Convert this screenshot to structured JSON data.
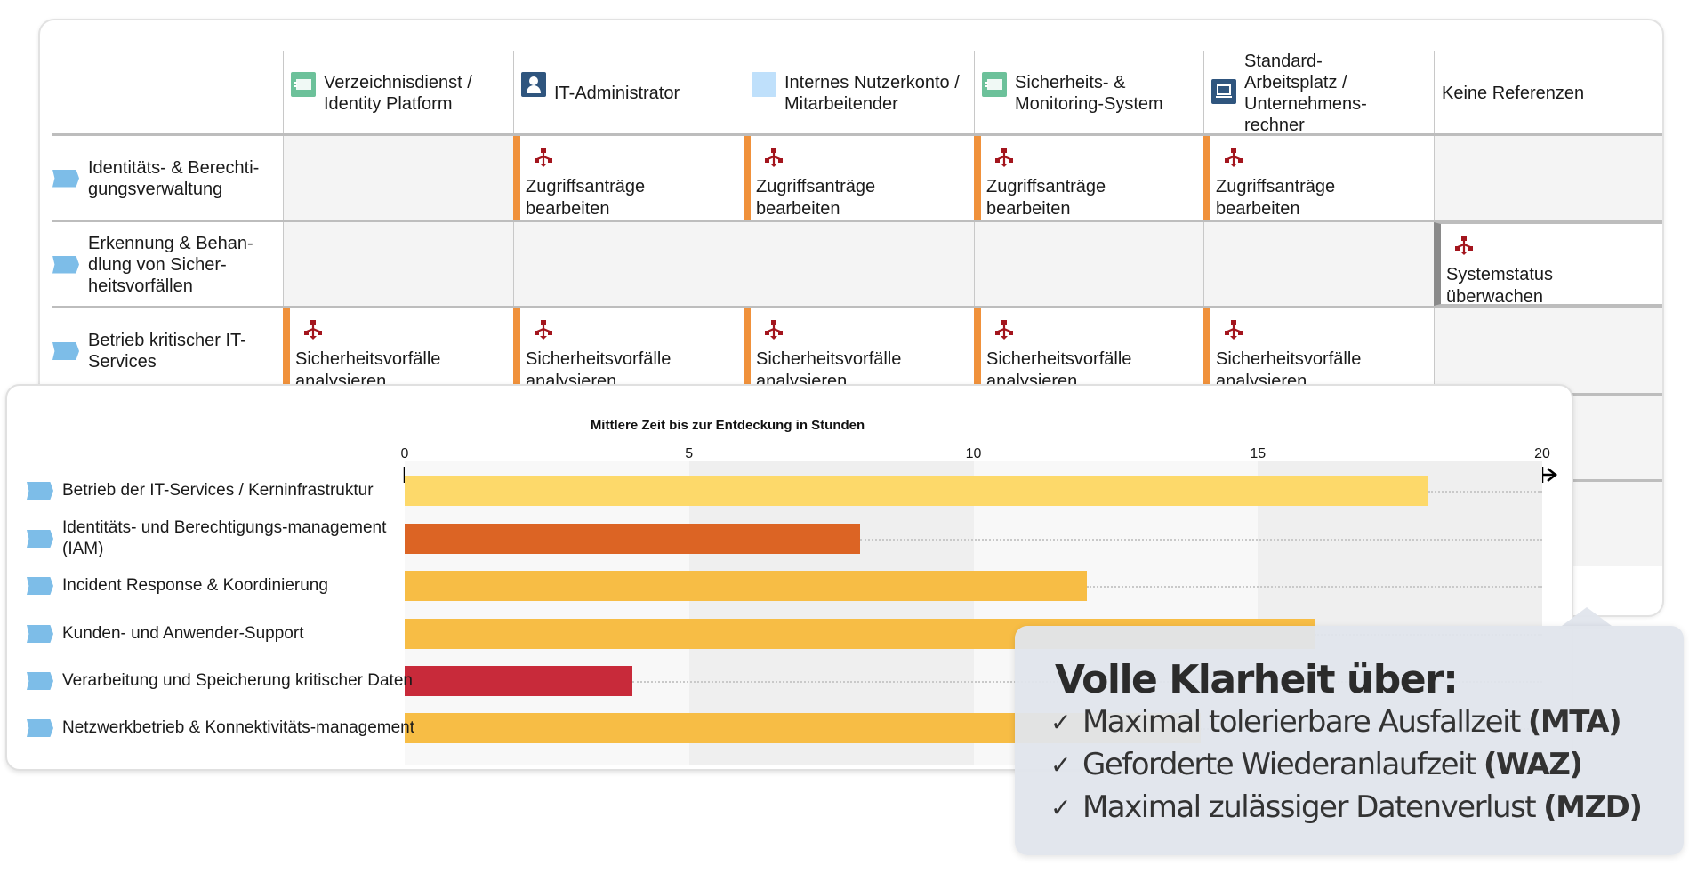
{
  "matrix": {
    "columns": [
      {
        "label": "Verzeichnisdienst / Identity Platform",
        "icon": "directory-service-icon",
        "color": "#6cc19a"
      },
      {
        "label": "IT-Administrator",
        "icon": "user-icon",
        "color": "#2f557e"
      },
      {
        "label": "Internes Nutzerkonto / Mitarbeitender",
        "icon": "account-icon",
        "color": "#bfe0fb"
      },
      {
        "label": "Sicherheits- & Monitoring-System",
        "icon": "system-icon",
        "color": "#6cc19a"
      },
      {
        "label": "Standard-Arbeitsplatz / Unternehmens-rechner",
        "icon": "laptop-icon",
        "color": "#2f557e"
      },
      {
        "label": "Keine Referenzen",
        "icon": "",
        "color": ""
      }
    ],
    "rows": [
      {
        "label": "Identitäts- & Berechti-gungsverwaltung",
        "cells": [
          "",
          "Zugriffsanträge bearbeiten",
          "Zugriffsanträge bearbeiten",
          "Zugriffsanträge bearbeiten",
          "Zugriffsanträge bearbeiten",
          ""
        ]
      },
      {
        "label": "Erkennung & Behan-dlung von Sicher-heitsvorfällen",
        "cells": [
          "",
          "",
          "",
          "",
          "",
          "Systemstatus überwachen"
        ]
      },
      {
        "label": "Betrieb kritischer IT-Services",
        "cells": [
          "Sicherheitsvorfälle analysieren",
          "Sicherheitsvorfälle analysieren",
          "Sicherheitsvorfälle analysieren",
          "Sicherheitsvorfälle analysieren",
          "Sicherheitsvorfälle analysieren",
          ""
        ]
      }
    ],
    "accent_color": "#f0913b",
    "process_icon_color": "#a3151d"
  },
  "chart_data": {
    "type": "bar",
    "orientation": "horizontal",
    "title": "Mittlere Zeit bis zur Entdeckung in Stunden",
    "xlabel": "",
    "ylabel": "",
    "xlim": [
      0,
      20
    ],
    "ticks": [
      "0",
      "5",
      "10",
      "15",
      "20"
    ],
    "categories": [
      "Betrieb der IT-Services / Kerninfrastruktur",
      "Identitäts- und Berechtigungs-management (IAM)",
      "Incident Response & Koordinierung",
      "Kunden- und Anwender-Support",
      "Verarbeitung und Speicherung kritischer Daten",
      "Netzwerkbetrieb & Konnektivitäts-management"
    ],
    "values": [
      18,
      8,
      12,
      16,
      4,
      14
    ],
    "colors": [
      "#fdd96a",
      "#dc6424",
      "#f7bd45",
      "#f7bd45",
      "#c82a3a",
      "#f7bd45"
    ]
  },
  "tooltip": {
    "title": "Volle Klarheit über:",
    "items": [
      {
        "text": "Maximal tolerierbare Ausfallzeit",
        "abbr": "(MTA)"
      },
      {
        "text": "Geforderte Wiederanlaufzeit",
        "abbr": "(WAZ)"
      },
      {
        "text": "Maximal zulässiger Datenverlust",
        "abbr": "(MZD)"
      }
    ],
    "check": "✓"
  }
}
